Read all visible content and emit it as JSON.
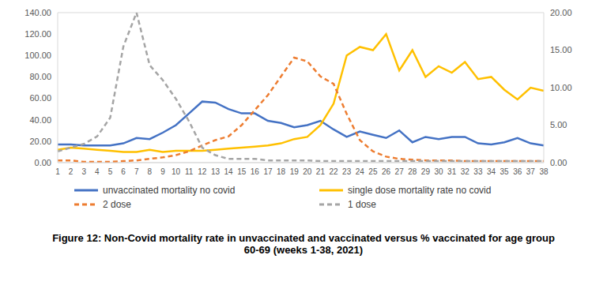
{
  "chart_data": {
    "type": "line",
    "title": "Figure 12: Non-Covid mortality rate in unvaccinated and vaccinated versus % vaccinated for age group 60-69 (weeks 1-38, 2021)",
    "categories": [
      1,
      2,
      3,
      4,
      5,
      6,
      7,
      8,
      9,
      10,
      11,
      12,
      13,
      14,
      15,
      16,
      17,
      18,
      19,
      20,
      21,
      22,
      23,
      24,
      25,
      26,
      27,
      28,
      29,
      30,
      31,
      32,
      33,
      34,
      35,
      36,
      37,
      38
    ],
    "series": [
      {
        "name": "unvaccinated mortality no covid",
        "color": "#4472c4",
        "line_style": "solid",
        "values": [
          17,
          17,
          16,
          16,
          16,
          18,
          23,
          22,
          28,
          35,
          46,
          57,
          56,
          50,
          46,
          46,
          39,
          37,
          33,
          35,
          39,
          31,
          24,
          29,
          26,
          23,
          30,
          19,
          24,
          22,
          24,
          24,
          18,
          17,
          19,
          23,
          18,
          16
        ]
      },
      {
        "name": "single dose mortality rate no covid",
        "color": "#ffc000",
        "line_style": "solid",
        "values": [
          12,
          14,
          13,
          12,
          11,
          10,
          10,
          12,
          10,
          11,
          11,
          11,
          12,
          13,
          14,
          15,
          16,
          18,
          22,
          24,
          35,
          55,
          100,
          108,
          105,
          120,
          86,
          105,
          80,
          90,
          84,
          94,
          78,
          80,
          68,
          59,
          70,
          67
        ]
      },
      {
        "name": "2 dose",
        "color": "#ed7d31",
        "line_style": "dashed",
        "axis": "y2",
        "values": [
          0.3,
          0.3,
          0.1,
          0.1,
          0.1,
          0.2,
          0.3,
          0.5,
          0.7,
          1.0,
          1.5,
          2.3,
          3.0,
          3.5,
          5.0,
          7.0,
          9.0,
          11.5,
          14.0,
          13.5,
          11.5,
          10.5,
          6.5,
          3.0,
          1.5,
          0.8,
          0.5,
          0.4,
          0.3,
          0.3,
          0.3,
          0.2,
          0.2,
          0.2,
          0.2,
          0.2,
          0.2,
          0.2
        ]
      },
      {
        "name": "1 dose",
        "color": "#a5a5a5",
        "line_style": "dashed",
        "axis": "y2",
        "values": [
          1.5,
          2,
          2.5,
          3.5,
          6,
          15.5,
          20,
          13,
          11,
          8.5,
          5.5,
          2,
          1,
          0.5,
          0.5,
          0.5,
          0.3,
          0.3,
          0.3,
          0.3,
          0.2,
          0.2,
          0.2,
          0.2,
          0.2,
          0.2,
          0.2,
          0.2,
          0.2,
          0.2,
          0.2,
          0.2,
          0.2,
          0.2,
          0.2,
          0.2,
          0.2,
          0.2
        ]
      }
    ],
    "ylim": [
      0,
      140
    ],
    "yticks": [
      {
        "value": 0,
        "label": "0.00"
      },
      {
        "value": 20,
        "label": "20.00"
      },
      {
        "value": 40,
        "label": "40.00"
      },
      {
        "value": 60,
        "label": "60.00"
      },
      {
        "value": 80,
        "label": "80.00"
      },
      {
        "value": 100,
        "label": "100.00"
      },
      {
        "value": 120,
        "label": "120.00"
      },
      {
        "value": 140,
        "label": "140.00"
      }
    ],
    "y2lim": [
      0,
      20
    ],
    "y2ticks": [
      {
        "value": 0,
        "label": "0.00"
      },
      {
        "value": 5,
        "label": "5.00"
      },
      {
        "value": 10,
        "label": "10.00"
      },
      {
        "value": 15,
        "label": "15.00"
      },
      {
        "value": 20,
        "label": "20.00"
      }
    ],
    "grid": true,
    "legend": "bottom"
  }
}
